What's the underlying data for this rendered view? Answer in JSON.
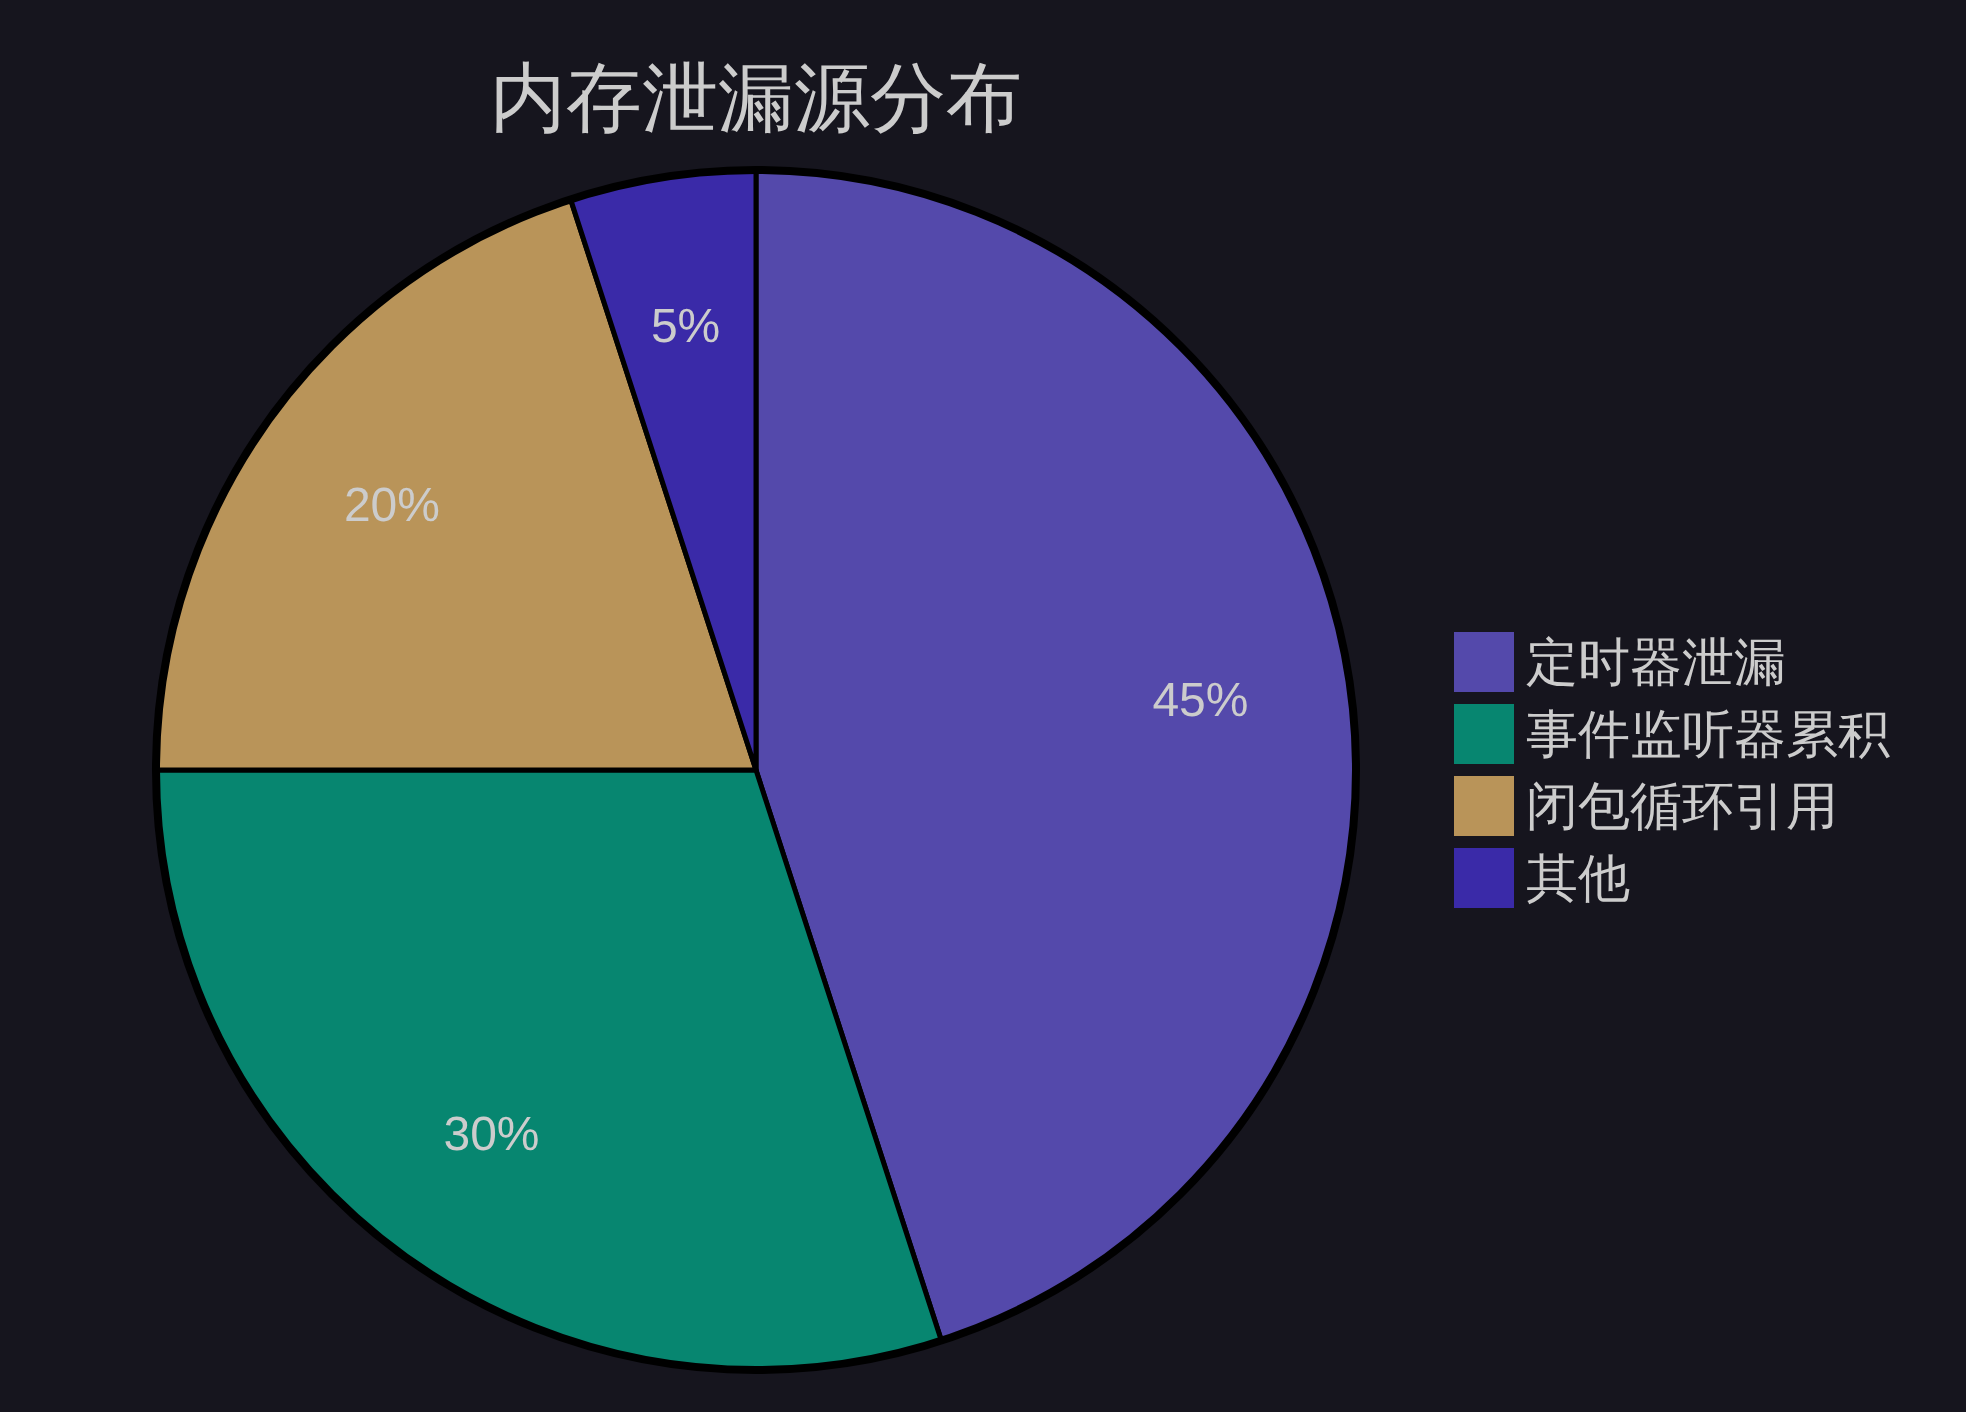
{
  "chart_data": {
    "type": "pie",
    "title": "内存泄漏源分布",
    "categories": [
      "定时器泄漏",
      "事件监听器累积",
      "闭包循环引用",
      "其他"
    ],
    "values": [
      45,
      30,
      20,
      5
    ],
    "colors": [
      "#5449ab",
      "#078670",
      "#b99459",
      "#3a2aa8"
    ],
    "value_labels": [
      "45%",
      "30%",
      "20%",
      "5%"
    ],
    "legend": "right"
  }
}
